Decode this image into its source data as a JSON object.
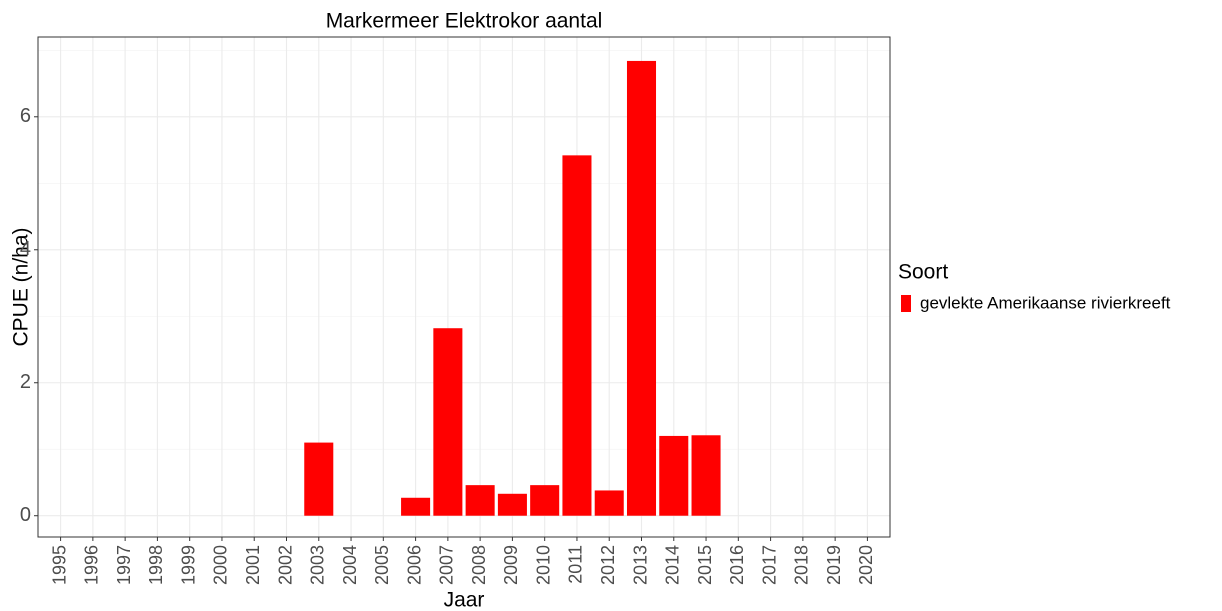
{
  "chart_data": {
    "type": "bar",
    "title": "Markermeer Elektrokor aantal",
    "x_label": "Jaar",
    "y_label": "CPUE (n/ha)",
    "categories": [
      "1995",
      "1996",
      "1997",
      "1998",
      "1999",
      "2000",
      "2001",
      "2002",
      "2003",
      "2004",
      "2005",
      "2006",
      "2007",
      "2008",
      "2009",
      "2010",
      "2011",
      "2012",
      "2013",
      "2014",
      "2015",
      "2016",
      "2017",
      "2018",
      "2019",
      "2020"
    ],
    "series": [
      {
        "name": "gevlekte Amerikaanse rivierkreeft",
        "color": "#ff0000",
        "values": [
          null,
          null,
          null,
          null,
          null,
          null,
          null,
          null,
          1.1,
          null,
          null,
          0.27,
          2.82,
          0.46,
          0.33,
          0.46,
          5.42,
          0.38,
          6.84,
          1.2,
          1.21,
          null,
          null,
          null,
          null,
          null
        ]
      }
    ],
    "legend_title": "Soort",
    "legend_position": "right",
    "ylim": [
      -0.32,
      7.2
    ],
    "yticks": [
      0,
      2,
      4,
      6
    ],
    "grid": true
  }
}
